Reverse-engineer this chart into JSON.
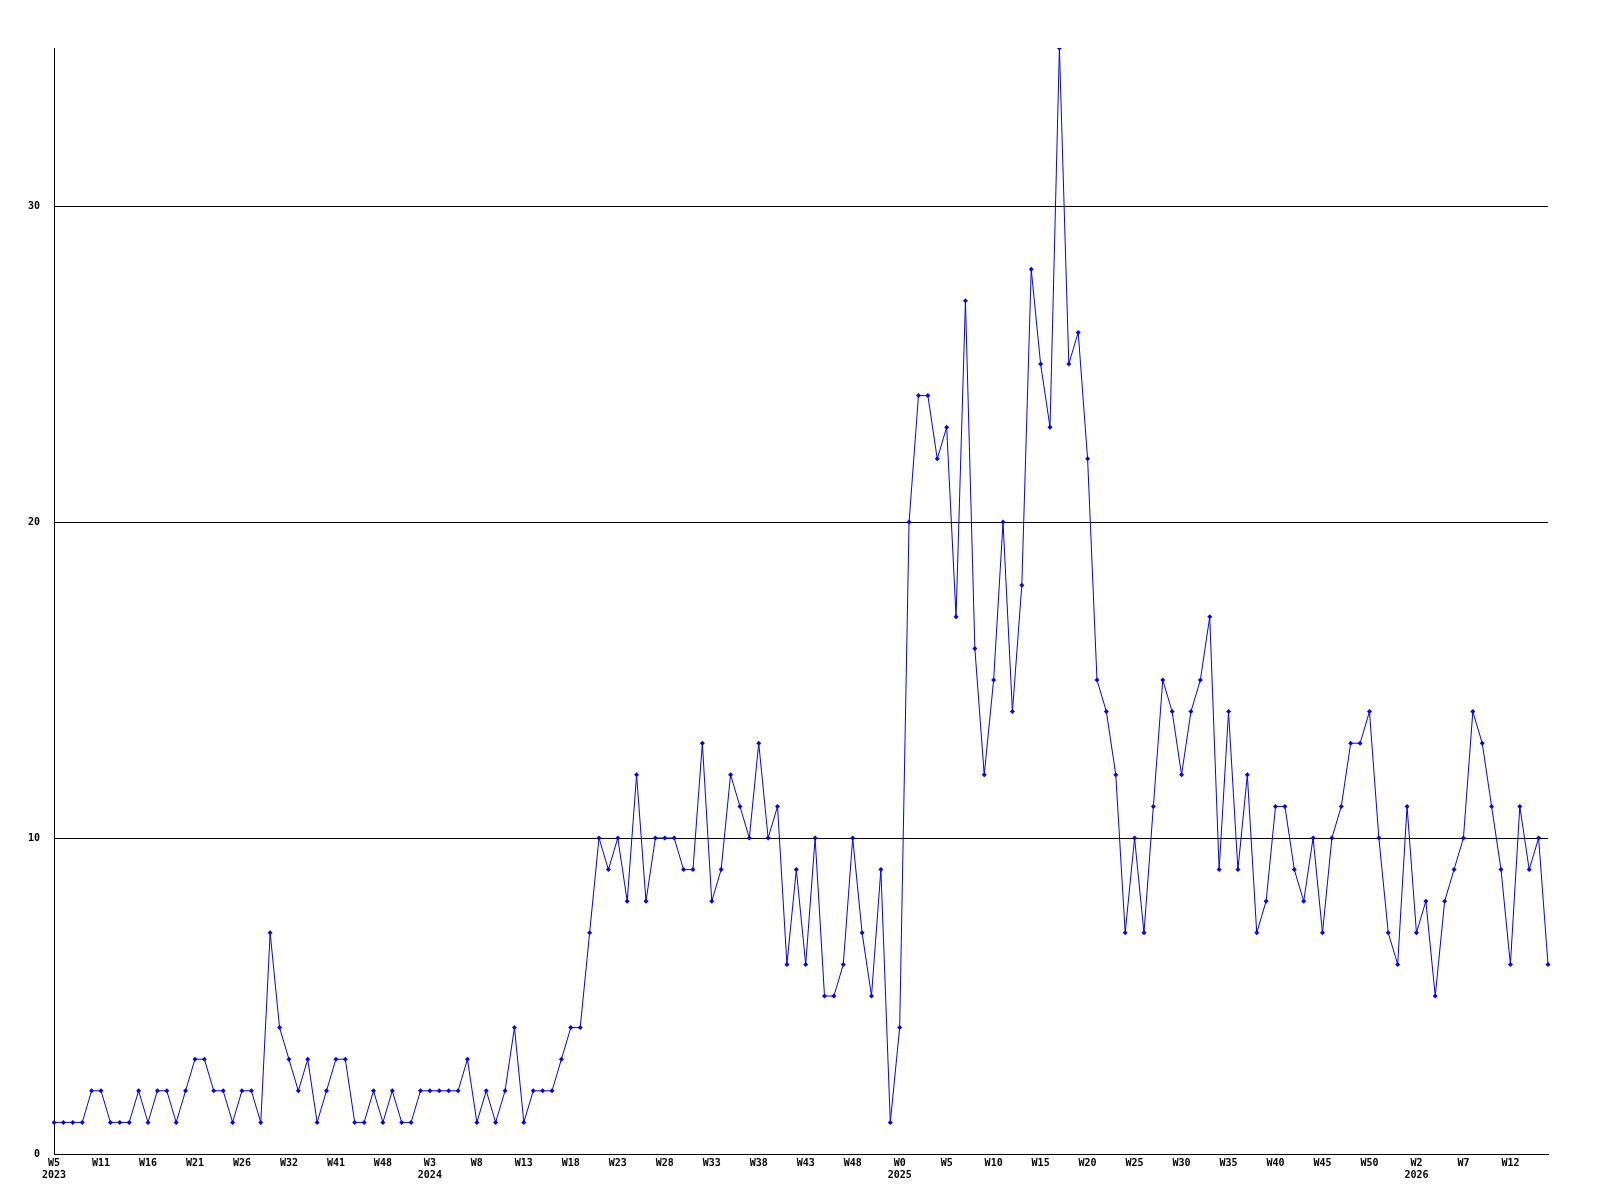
{
  "chart_data": {
    "type": "line",
    "categories": [
      "W5\n2023",
      null,
      null,
      null,
      null,
      "W11",
      null,
      null,
      null,
      null,
      "W16",
      null,
      null,
      null,
      null,
      "W21",
      null,
      null,
      null,
      null,
      "W26",
      null,
      null,
      null,
      null,
      "W32",
      null,
      null,
      null,
      null,
      "W41",
      null,
      null,
      null,
      null,
      "W48",
      null,
      null,
      null,
      null,
      "W3\n2024",
      null,
      null,
      null,
      null,
      "W8",
      null,
      null,
      null,
      null,
      "W13",
      null,
      null,
      null,
      null,
      "W18",
      null,
      null,
      null,
      null,
      "W23",
      null,
      null,
      null,
      null,
      "W28",
      null,
      null,
      null,
      null,
      "W33",
      null,
      null,
      null,
      null,
      "W38",
      null,
      null,
      null,
      null,
      "W43",
      null,
      null,
      null,
      null,
      "W48",
      null,
      null,
      null,
      null,
      "W0\n2025",
      null,
      null,
      null,
      null,
      "W5",
      null,
      null,
      null,
      null,
      "W10",
      null,
      null,
      null,
      null,
      "W15",
      null,
      null,
      null,
      null,
      "W20",
      null,
      null,
      null,
      null,
      "W25",
      null,
      null,
      null,
      null,
      "W30",
      null,
      null,
      null,
      null,
      "W35",
      null,
      null,
      null,
      null,
      "W40",
      null,
      null,
      null,
      null,
      "W45",
      null,
      null,
      null,
      null,
      "W50",
      null,
      null,
      null,
      null,
      "W2\n2026",
      null,
      null,
      null,
      null,
      "W7",
      null,
      null,
      null,
      null,
      "W12",
      null,
      null,
      null,
      null
    ],
    "values": [
      1,
      1,
      1,
      1,
      2,
      2,
      1,
      1,
      1,
      2,
      1,
      2,
      2,
      1,
      2,
      3,
      3,
      2,
      2,
      1,
      2,
      2,
      1,
      7,
      4,
      3,
      2,
      3,
      1,
      2,
      3,
      3,
      1,
      1,
      2,
      1,
      2,
      1,
      1,
      2,
      2,
      2,
      2,
      2,
      3,
      1,
      2,
      1,
      2,
      4,
      1,
      2,
      2,
      2,
      3,
      4,
      4,
      7,
      10,
      9,
      10,
      8,
      12,
      8,
      10,
      10,
      10,
      9,
      9,
      13,
      8,
      9,
      12,
      11,
      10,
      13,
      10,
      11,
      6,
      9,
      6,
      10,
      5,
      5,
      6,
      10,
      7,
      5,
      9,
      1,
      4,
      20,
      24,
      24,
      22,
      23,
      17,
      27,
      16,
      12,
      15,
      20,
      14,
      18,
      28,
      25,
      23,
      35,
      25,
      26,
      22,
      15,
      14,
      12,
      7,
      10,
      7,
      11,
      15,
      14,
      12,
      14,
      15,
      17,
      9,
      14,
      9,
      12,
      7,
      8,
      11,
      11,
      9,
      8,
      10,
      7,
      10,
      11,
      13,
      13,
      14,
      10,
      7,
      6,
      11,
      7,
      8,
      5,
      8,
      9,
      10,
      14,
      13,
      11,
      9,
      6,
      11,
      9,
      10,
      6
    ],
    "color": "#0000ff",
    "marker": "diamond",
    "line_style": "solid",
    "ylim": [
      0,
      35
    ],
    "yticks": [
      0,
      10,
      20,
      30
    ],
    "grid": "y"
  }
}
